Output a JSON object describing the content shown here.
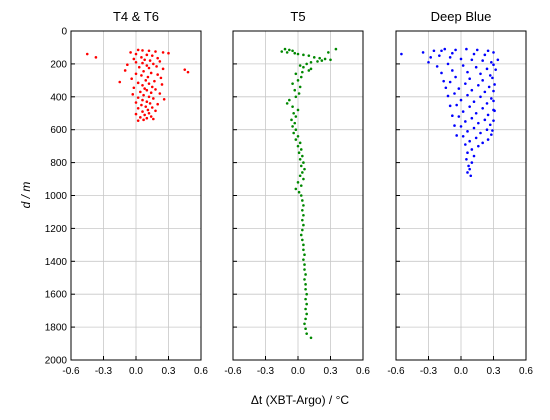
{
  "chart_data": {
    "type": "scatter",
    "panels": [
      {
        "title": "T4 & T6",
        "color": "#ff0000",
        "points": [
          [
            -0.45,
            140
          ],
          [
            -0.37,
            160
          ],
          [
            0.02,
            115
          ],
          [
            0.06,
            118
          ],
          [
            0.12,
            120
          ],
          [
            0.18,
            125
          ],
          [
            0.25,
            130
          ],
          [
            0.3,
            135
          ],
          [
            -0.05,
            130
          ],
          [
            0.0,
            140
          ],
          [
            0.1,
            145
          ],
          [
            0.15,
            150
          ],
          [
            0.05,
            160
          ],
          [
            0.2,
            165
          ],
          [
            -0.02,
            170
          ],
          [
            0.08,
            175
          ],
          [
            0.13,
            180
          ],
          [
            0.22,
            185
          ],
          [
            0.0,
            190
          ],
          [
            0.06,
            195
          ],
          [
            0.16,
            200
          ],
          [
            -0.08,
            205
          ],
          [
            0.1,
            210
          ],
          [
            0.19,
            215
          ],
          [
            0.03,
            220
          ],
          [
            0.12,
            225
          ],
          [
            0.25,
            230
          ],
          [
            0.45,
            235
          ],
          [
            0.48,
            250
          ],
          [
            -0.1,
            240
          ],
          [
            0.07,
            245
          ],
          [
            0.14,
            255
          ],
          [
            0.0,
            260
          ],
          [
            0.2,
            265
          ],
          [
            0.05,
            270
          ],
          [
            0.11,
            280
          ],
          [
            0.23,
            285
          ],
          [
            -0.04,
            290
          ],
          [
            0.09,
            300
          ],
          [
            0.17,
            305
          ],
          [
            -0.15,
            310
          ],
          [
            0.02,
            315
          ],
          [
            0.12,
            320
          ],
          [
            0.24,
            325
          ],
          [
            0.06,
            330
          ],
          [
            0.15,
            340
          ],
          [
            -0.02,
            345
          ],
          [
            0.08,
            350
          ],
          [
            0.18,
            355
          ],
          [
            0.1,
            360
          ],
          [
            0.04,
            370
          ],
          [
            0.14,
            375
          ],
          [
            0.22,
            380
          ],
          [
            -0.03,
            385
          ],
          [
            0.07,
            390
          ],
          [
            0.12,
            400
          ],
          [
            0.02,
            405
          ],
          [
            0.16,
            410
          ],
          [
            0.26,
            415
          ],
          [
            0.06,
            420
          ],
          [
            0.1,
            430
          ],
          [
            0.0,
            435
          ],
          [
            0.13,
            440
          ],
          [
            0.2,
            445
          ],
          [
            0.05,
            450
          ],
          [
            0.09,
            460
          ],
          [
            0.15,
            465
          ],
          [
            0.02,
            470
          ],
          [
            0.11,
            480
          ],
          [
            0.18,
            485
          ],
          [
            0.06,
            490
          ],
          [
            0.12,
            500
          ],
          [
            0.0,
            505
          ],
          [
            0.08,
            510
          ],
          [
            0.14,
            520
          ],
          [
            0.04,
            525
          ],
          [
            0.1,
            530
          ],
          [
            0.16,
            535
          ],
          [
            0.07,
            540
          ],
          [
            0.02,
            545
          ]
        ]
      },
      {
        "title": "T5",
        "color": "#008800",
        "points": [
          [
            -0.12,
            110
          ],
          [
            -0.08,
            115
          ],
          [
            -0.05,
            120
          ],
          [
            -0.15,
            125
          ],
          [
            -0.1,
            130
          ],
          [
            -0.03,
            135
          ],
          [
            0.0,
            140
          ],
          [
            0.05,
            145
          ],
          [
            0.1,
            150
          ],
          [
            0.15,
            160
          ],
          [
            0.2,
            165
          ],
          [
            0.25,
            170
          ],
          [
            0.3,
            175
          ],
          [
            0.22,
            180
          ],
          [
            0.18,
            185
          ],
          [
            0.12,
            190
          ],
          [
            0.35,
            110
          ],
          [
            0.28,
            130
          ],
          [
            0.08,
            200
          ],
          [
            0.02,
            210
          ],
          [
            0.05,
            220
          ],
          [
            0.12,
            230
          ],
          [
            0.1,
            240
          ],
          [
            0.04,
            250
          ],
          [
            -0.02,
            260
          ],
          [
            0.03,
            280
          ],
          [
            0.0,
            300
          ],
          [
            -0.05,
            320
          ],
          [
            0.02,
            340
          ],
          [
            -0.03,
            360
          ],
          [
            0.01,
            380
          ],
          [
            -0.02,
            400
          ],
          [
            -0.08,
            420
          ],
          [
            -0.1,
            440
          ],
          [
            -0.05,
            460
          ],
          [
            0.0,
            480
          ],
          [
            -0.04,
            500
          ],
          [
            -0.02,
            520
          ],
          [
            -0.06,
            540
          ],
          [
            -0.03,
            560
          ],
          [
            -0.05,
            580
          ],
          [
            -0.02,
            600
          ],
          [
            -0.04,
            620
          ],
          [
            0.0,
            640
          ],
          [
            -0.02,
            660
          ],
          [
            0.02,
            680
          ],
          [
            0.0,
            700
          ],
          [
            0.03,
            720
          ],
          [
            0.01,
            740
          ],
          [
            0.04,
            760
          ],
          [
            0.02,
            780
          ],
          [
            0.05,
            800
          ],
          [
            0.03,
            820
          ],
          [
            0.06,
            840
          ],
          [
            0.04,
            860
          ],
          [
            0.02,
            880
          ],
          [
            0.05,
            900
          ],
          [
            0.0,
            920
          ],
          [
            0.03,
            940
          ],
          [
            -0.02,
            960
          ],
          [
            0.01,
            980
          ],
          [
            0.03,
            1000
          ],
          [
            0.04,
            1030
          ],
          [
            0.05,
            1060
          ],
          [
            0.04,
            1090
          ],
          [
            0.05,
            1120
          ],
          [
            0.04,
            1150
          ],
          [
            0.05,
            1180
          ],
          [
            0.04,
            1210
          ],
          [
            0.03,
            1240
          ],
          [
            0.04,
            1270
          ],
          [
            0.05,
            1300
          ],
          [
            0.05,
            1330
          ],
          [
            0.06,
            1360
          ],
          [
            0.05,
            1390
          ],
          [
            0.06,
            1420
          ],
          [
            0.06,
            1450
          ],
          [
            0.07,
            1480
          ],
          [
            0.06,
            1510
          ],
          [
            0.07,
            1540
          ],
          [
            0.07,
            1570
          ],
          [
            0.08,
            1600
          ],
          [
            0.07,
            1630
          ],
          [
            0.08,
            1660
          ],
          [
            0.07,
            1690
          ],
          [
            0.08,
            1720
          ],
          [
            0.07,
            1750
          ],
          [
            0.06,
            1780
          ],
          [
            0.07,
            1810
          ],
          [
            0.08,
            1840
          ],
          [
            0.12,
            1865
          ]
        ]
      },
      {
        "title": "Deep Blue",
        "color": "#0000ff",
        "points": [
          [
            -0.55,
            140
          ],
          [
            -0.35,
            130
          ],
          [
            -0.25,
            120
          ],
          [
            -0.15,
            110
          ],
          [
            -0.05,
            115
          ],
          [
            0.05,
            110
          ],
          [
            0.15,
            115
          ],
          [
            0.25,
            120
          ],
          [
            0.3,
            130
          ],
          [
            -0.2,
            150
          ],
          [
            -0.1,
            160
          ],
          [
            0.0,
            170
          ],
          [
            0.1,
            175
          ],
          [
            0.2,
            180
          ],
          [
            0.28,
            190
          ],
          [
            -0.12,
            200
          ],
          [
            0.02,
            210
          ],
          [
            0.14,
            220
          ],
          [
            0.24,
            230
          ],
          [
            -0.08,
            240
          ],
          [
            0.06,
            250
          ],
          [
            0.18,
            260
          ],
          [
            0.27,
            270
          ],
          [
            -0.05,
            280
          ],
          [
            0.08,
            290
          ],
          [
            0.2,
            300
          ],
          [
            -0.1,
            310
          ],
          [
            0.04,
            320
          ],
          [
            0.16,
            330
          ],
          [
            0.26,
            340
          ],
          [
            -0.02,
            350
          ],
          [
            0.1,
            360
          ],
          [
            0.22,
            370
          ],
          [
            -0.06,
            380
          ],
          [
            0.06,
            390
          ],
          [
            0.18,
            400
          ],
          [
            0.28,
            410
          ],
          [
            0.0,
            420
          ],
          [
            0.12,
            430
          ],
          [
            0.24,
            440
          ],
          [
            -0.04,
            450
          ],
          [
            0.08,
            460
          ],
          [
            0.2,
            470
          ],
          [
            0.3,
            480
          ],
          [
            0.02,
            490
          ],
          [
            0.14,
            500
          ],
          [
            0.25,
            510
          ],
          [
            -0.02,
            520
          ],
          [
            0.1,
            530
          ],
          [
            0.22,
            540
          ],
          [
            0.04,
            550
          ],
          [
            0.16,
            560
          ],
          [
            0.27,
            570
          ],
          [
            0.0,
            580
          ],
          [
            0.12,
            590
          ],
          [
            0.24,
            600
          ],
          [
            0.06,
            610
          ],
          [
            0.18,
            620
          ],
          [
            0.28,
            630
          ],
          [
            0.02,
            640
          ],
          [
            0.14,
            650
          ],
          [
            0.25,
            660
          ],
          [
            0.08,
            670
          ],
          [
            0.2,
            680
          ],
          [
            0.04,
            690
          ],
          [
            0.16,
            700
          ],
          [
            0.1,
            720
          ],
          [
            0.06,
            740
          ],
          [
            0.12,
            760
          ],
          [
            0.05,
            780
          ],
          [
            0.1,
            800
          ],
          [
            0.07,
            820
          ],
          [
            0.08,
            840
          ],
          [
            0.06,
            860
          ],
          [
            0.09,
            880
          ],
          [
            -0.18,
            120
          ],
          [
            -0.08,
            135
          ],
          [
            0.12,
            140
          ],
          [
            0.22,
            145
          ],
          [
            -0.28,
            160
          ],
          [
            0.34,
            175
          ],
          [
            -0.3,
            190
          ],
          [
            0.3,
            205
          ],
          [
            -0.22,
            215
          ],
          [
            0.32,
            235
          ],
          [
            -0.18,
            255
          ],
          [
            0.29,
            285
          ],
          [
            -0.16,
            305
          ],
          [
            0.31,
            325
          ],
          [
            -0.14,
            345
          ],
          [
            0.3,
            365
          ],
          [
            -0.12,
            395
          ],
          [
            0.3,
            425
          ],
          [
            -0.1,
            455
          ],
          [
            0.31,
            485
          ],
          [
            -0.08,
            515
          ],
          [
            0.3,
            545
          ],
          [
            -0.06,
            575
          ],
          [
            0.29,
            605
          ],
          [
            -0.04,
            635
          ]
        ]
      }
    ],
    "x_ticks": [
      "-0.6",
      "-0.3",
      "0.0",
      "0.3",
      "0.6"
    ],
    "y_ticks": [
      "0",
      "200",
      "400",
      "600",
      "800",
      "1000",
      "1200",
      "1400",
      "1600",
      "1800",
      "2000"
    ],
    "xlim": [
      -0.6,
      0.6
    ],
    "ylim": [
      0,
      2000
    ],
    "y_inverted": true,
    "grid": true,
    "ylabel": "d / m",
    "xlabel": "Δt (XBT-Argo) / °C"
  }
}
